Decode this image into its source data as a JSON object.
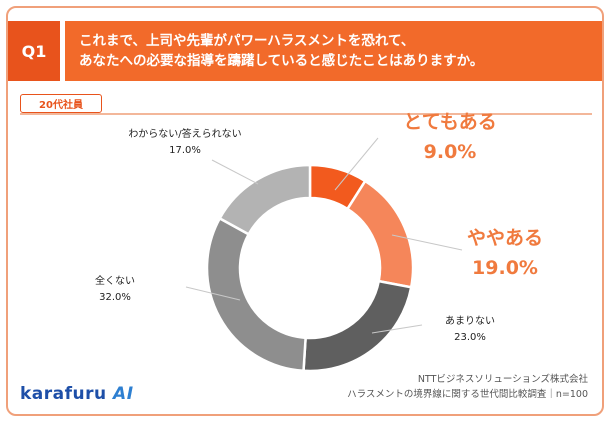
{
  "header": {
    "badge": "Q1",
    "question_line1": "これまで、上司や先輩がパワーハラスメントを恐れて、",
    "question_line2": "あなたへの必要な指導を躊躇していると感じたことはありますか。"
  },
  "tag": "20代社員",
  "chart_data": {
    "type": "pie",
    "donut": true,
    "start": "top",
    "direction": "clockwise",
    "slices": [
      {
        "label": "とてもある",
        "value": 9.0,
        "value_text": "9.0%",
        "color": "#f25a1e",
        "emphasis": true
      },
      {
        "label": "ややある",
        "value": 19.0,
        "value_text": "19.0%",
        "color": "#f5865a",
        "emphasis": true
      },
      {
        "label": "あまりない",
        "value": 23.0,
        "value_text": "23.0%",
        "color": "#5f5f5f",
        "emphasis": false
      },
      {
        "label": "全くない",
        "value": 32.0,
        "value_text": "32.0%",
        "color": "#8e8e8e",
        "emphasis": false
      },
      {
        "label": "わからない/答えられない",
        "value": 17.0,
        "value_text": "17.0%",
        "color": "#b3b3b3",
        "emphasis": false
      }
    ]
  },
  "branding": {
    "logo_main": "karafuru ",
    "logo_ai": "AI"
  },
  "footer": {
    "line1": "NTTビジネスソリューションズ株式会社",
    "line2": "ハラスメントの境界線に関する世代間比較調査｜n=100"
  }
}
